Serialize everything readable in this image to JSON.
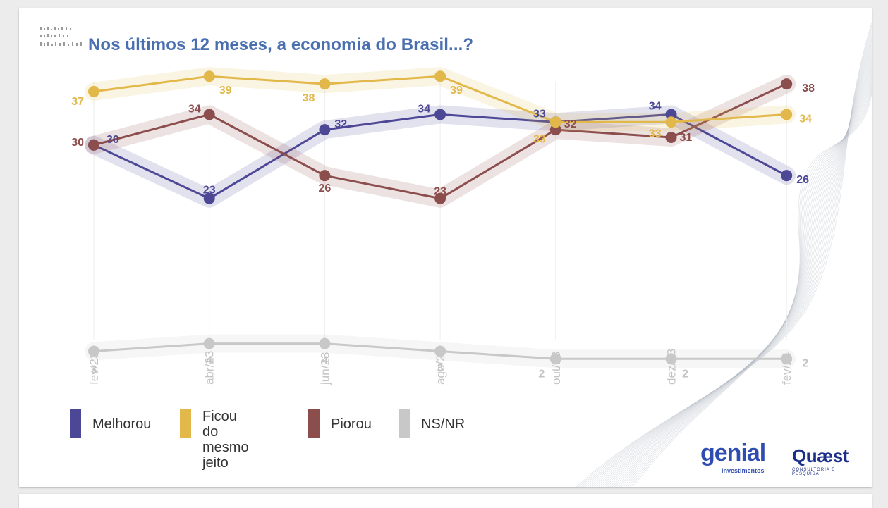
{
  "chart_data": {
    "type": "line",
    "title": "Nos últimos 12 meses, a economia do Brasil...?",
    "categories": [
      "fev/23",
      "abr/23",
      "jun/23",
      "ago/23",
      "out/23",
      "dez/23",
      "fev/24"
    ],
    "ylim": [
      0,
      45
    ],
    "grid": true,
    "legend_position": "bottom-left",
    "series": [
      {
        "name": "Melhorou",
        "color": "#4c4896",
        "values": [
          30,
          23,
          32,
          34,
          33,
          34,
          26
        ]
      },
      {
        "name": "Ficou do mesmo jeito",
        "color": "#e2b84a",
        "values": [
          37,
          39,
          38,
          39,
          33,
          33,
          34
        ]
      },
      {
        "name": "Piorou",
        "color": "#8c4d4d",
        "values": [
          30,
          34,
          26,
          23,
          32,
          31,
          38
        ]
      },
      {
        "name": "NS/NR",
        "color": "#c8c8c8",
        "values": [
          3,
          4,
          4,
          3,
          2,
          2,
          2
        ]
      }
    ]
  },
  "legend": [
    {
      "label": "Melhorou",
      "color": "#4c4896"
    },
    {
      "label": "Ficou do\nmesmo jeito",
      "color": "#e2b84a"
    },
    {
      "label": "Piorou",
      "color": "#8c4d4d"
    },
    {
      "label": "NS/NR",
      "color": "#c8c8c8"
    }
  ],
  "logos": {
    "genial": "genial",
    "genial_sub": "investimentos",
    "quaest": "Quæst",
    "quaest_sub": "CONSULTORIA E PESQUISA"
  }
}
